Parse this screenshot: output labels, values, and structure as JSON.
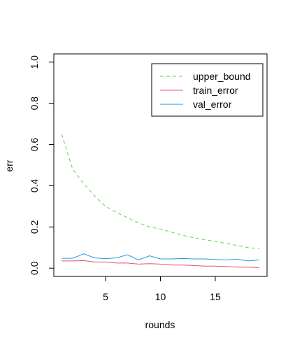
{
  "chart_data": {
    "type": "line",
    "title": "",
    "xlabel": "rounds",
    "ylabel": "err",
    "xlim": [
      0.28,
      19.72
    ],
    "ylim": [
      -0.04,
      1.04
    ],
    "xticks": [
      5,
      10,
      15
    ],
    "yticks": [
      0.0,
      0.2,
      0.4,
      0.6,
      0.8,
      1.0
    ],
    "xtick_labels": [
      "5",
      "10",
      "15"
    ],
    "ytick_labels": [
      "0.0",
      "0.2",
      "0.4",
      "0.6",
      "0.8",
      "1.0"
    ],
    "grid": false,
    "legend_position": "top-right",
    "x": [
      1,
      2,
      3,
      4,
      5,
      6,
      7,
      8,
      9,
      10,
      11,
      12,
      13,
      14,
      15,
      16,
      17,
      18,
      19
    ],
    "series": [
      {
        "name": "upper_bound",
        "color": "#61D04F",
        "dash": "dashed",
        "values": [
          0.65,
          0.48,
          0.41,
          0.35,
          0.3,
          0.27,
          0.245,
          0.22,
          0.2,
          0.19,
          0.175,
          0.16,
          0.148,
          0.138,
          0.13,
          0.12,
          0.11,
          0.1,
          0.095
        ]
      },
      {
        "name": "train_error",
        "color": "#DF536B",
        "dash": "solid",
        "values": [
          0.035,
          0.035,
          0.037,
          0.03,
          0.03,
          0.025,
          0.025,
          0.02,
          0.022,
          0.02,
          0.015,
          0.015,
          0.013,
          0.01,
          0.01,
          0.008,
          0.005,
          0.005,
          0.003
        ]
      },
      {
        "name": "val_error",
        "color": "#2297E6",
        "dash": "solid",
        "values": [
          0.048,
          0.048,
          0.07,
          0.05,
          0.046,
          0.05,
          0.065,
          0.04,
          0.06,
          0.045,
          0.045,
          0.047,
          0.045,
          0.045,
          0.042,
          0.04,
          0.043,
          0.035,
          0.04
        ]
      }
    ]
  }
}
